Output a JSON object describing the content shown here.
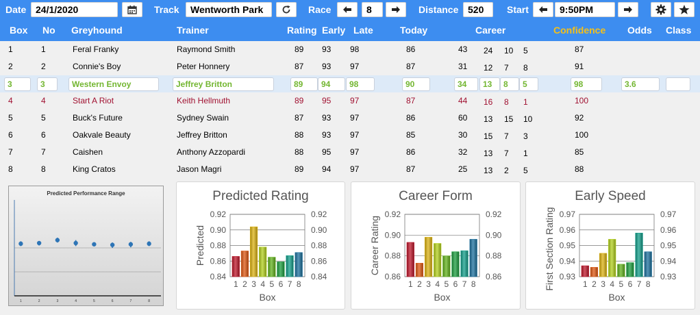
{
  "toolbar": {
    "date_label": "Date",
    "date_value": "24/1/2020",
    "calendar_icon": "calendar-icon",
    "track_label": "Track",
    "track_value": "Wentworth Park",
    "refresh_icon": "refresh-icon",
    "race_label": "Race",
    "race_value": "8",
    "distance_label": "Distance",
    "distance_value": "520",
    "start_label": "Start",
    "start_value": "9:50PM",
    "settings_icon": "gear-icon",
    "favorite_icon": "star-icon"
  },
  "table": {
    "headers": {
      "box": "Box",
      "no": "No",
      "greyhound": "Greyhound",
      "trainer": "Trainer",
      "rating": "Rating",
      "early": "Early",
      "late": "Late",
      "today": "Today",
      "career": "Career",
      "confidence": "Confidence",
      "odds": "Odds",
      "class": "Class"
    },
    "rows": [
      {
        "box": "1",
        "no": "1",
        "greyhound": "Feral Franky",
        "trainer": "Raymond Smith",
        "rating": "89",
        "early": "93",
        "late": "98",
        "today": "86",
        "career_starts": "43",
        "career_wins": "24",
        "career_seconds": "10",
        "career_thirds": "5",
        "confidence": "87",
        "odds": "",
        "class": ""
      },
      {
        "box": "2",
        "no": "2",
        "greyhound": "Connie's Boy",
        "trainer": "Peter Honnery",
        "rating": "87",
        "early": "93",
        "late": "97",
        "today": "87",
        "career_starts": "31",
        "career_wins": "12",
        "career_seconds": "7",
        "career_thirds": "8",
        "confidence": "91",
        "odds": "",
        "class": ""
      },
      {
        "box": "3",
        "no": "3",
        "greyhound": "Western Envoy",
        "trainer": "Jeffrey Britton",
        "rating": "89",
        "early": "94",
        "late": "98",
        "today": "90",
        "career_starts": "34",
        "career_wins": "13",
        "career_seconds": "8",
        "career_thirds": "5",
        "confidence": "98",
        "odds": "3.6",
        "class": ""
      },
      {
        "box": "4",
        "no": "4",
        "greyhound": "Start A Riot",
        "trainer": "Keith Hellmuth",
        "rating": "89",
        "early": "95",
        "late": "97",
        "today": "87",
        "career_starts": "44",
        "career_wins": "16",
        "career_seconds": "8",
        "career_thirds": "1",
        "confidence": "100",
        "odds": "",
        "class": ""
      },
      {
        "box": "5",
        "no": "5",
        "greyhound": "Buck's Future",
        "trainer": "Sydney Swain",
        "rating": "87",
        "early": "93",
        "late": "97",
        "today": "86",
        "career_starts": "60",
        "career_wins": "13",
        "career_seconds": "15",
        "career_thirds": "10",
        "confidence": "92",
        "odds": "",
        "class": ""
      },
      {
        "box": "6",
        "no": "6",
        "greyhound": "Oakvale Beauty",
        "trainer": "Jeffrey Britton",
        "rating": "88",
        "early": "93",
        "late": "97",
        "today": "85",
        "career_starts": "30",
        "career_wins": "15",
        "career_seconds": "7",
        "career_thirds": "3",
        "confidence": "100",
        "odds": "",
        "class": ""
      },
      {
        "box": "7",
        "no": "7",
        "greyhound": "Caishen",
        "trainer": "Anthony Azzopardi",
        "rating": "88",
        "early": "95",
        "late": "97",
        "today": "86",
        "career_starts": "32",
        "career_wins": "13",
        "career_seconds": "7",
        "career_thirds": "1",
        "confidence": "85",
        "odds": "",
        "class": ""
      },
      {
        "box": "8",
        "no": "8",
        "greyhound": "King Cratos",
        "trainer": "Jason Magri",
        "rating": "89",
        "early": "94",
        "late": "97",
        "today": "87",
        "career_starts": "25",
        "career_wins": "13",
        "career_seconds": "2",
        "career_thirds": "5",
        "confidence": "88",
        "odds": "",
        "class": ""
      }
    ],
    "selected_row": 2,
    "highlighted_row": 3
  },
  "colors": {
    "header_bg": "#3d8df0",
    "confidence_header": "#f5c018",
    "selected_text": "#73b631",
    "highlight_text": "#a01030",
    "bar_colors": [
      "#c0182c",
      "#e05a14",
      "#ddb414",
      "#b4d21e",
      "#64b41e",
      "#1ea040",
      "#14a08c",
      "#1e73a0"
    ]
  },
  "chart_data": [
    {
      "type": "scatter",
      "title": "Predicted Performance Range",
      "categories": [
        "1",
        "2",
        "3",
        "4",
        "5",
        "6",
        "7",
        "8"
      ],
      "values": [
        0.87,
        0.88,
        0.93,
        0.88,
        0.86,
        0.85,
        0.86,
        0.87
      ],
      "error_low": [
        0.83,
        0.84,
        0.89,
        0.83,
        0.83,
        0.8,
        0.81,
        0.83
      ],
      "error_high": [
        0.91,
        0.91,
        0.97,
        0.93,
        0.89,
        0.89,
        0.9,
        0.91
      ],
      "ylim": [
        0,
        1.6
      ]
    },
    {
      "type": "bar",
      "title": "Predicted Rating",
      "xlabel": "Box",
      "ylabel": "Predicted",
      "categories": [
        "1",
        "2",
        "3",
        "4",
        "5",
        "6",
        "7",
        "8"
      ],
      "values": [
        0.866,
        0.873,
        0.904,
        0.878,
        0.865,
        0.859,
        0.867,
        0.871
      ],
      "ylim": [
        0.84,
        0.92
      ],
      "yticks": [
        "0.92",
        "0.90",
        "0.88",
        "0.86",
        "0.84"
      ]
    },
    {
      "type": "bar",
      "title": "Career Form",
      "xlabel": "Box",
      "ylabel": "Career Rating",
      "categories": [
        "1",
        "2",
        "3",
        "4",
        "5",
        "6",
        "7",
        "8"
      ],
      "values": [
        0.893,
        0.873,
        0.898,
        0.892,
        0.88,
        0.884,
        0.885,
        0.896
      ],
      "ylim": [
        0.86,
        0.92
      ],
      "yticks": [
        "0.92",
        "0.90",
        "0.88",
        "0.86"
      ]
    },
    {
      "type": "bar",
      "title": "Early Speed",
      "xlabel": "Box",
      "ylabel": "First Section Rating",
      "categories": [
        "1",
        "2",
        "3",
        "4",
        "5",
        "6",
        "7",
        "8"
      ],
      "values": [
        0.937,
        0.936,
        0.945,
        0.954,
        0.938,
        0.939,
        0.958,
        0.946
      ],
      "ylim": [
        0.93,
        0.97
      ],
      "yticks": [
        "0.97",
        "0.96",
        "0.95",
        "0.94",
        "0.93"
      ]
    }
  ]
}
